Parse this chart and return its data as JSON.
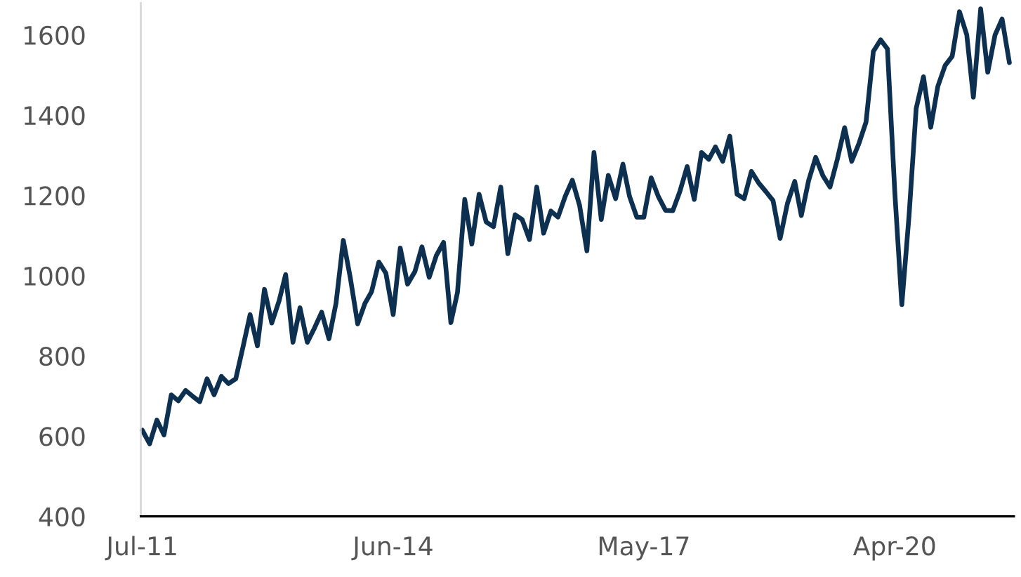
{
  "chart_data": {
    "type": "line",
    "x": [
      "2011-07",
      "2011-08",
      "2011-09",
      "2011-10",
      "2011-11",
      "2011-12",
      "2012-01",
      "2012-02",
      "2012-03",
      "2012-04",
      "2012-05",
      "2012-06",
      "2012-07",
      "2012-08",
      "2012-09",
      "2012-10",
      "2012-11",
      "2012-12",
      "2013-01",
      "2013-02",
      "2013-03",
      "2013-04",
      "2013-05",
      "2013-06",
      "2013-07",
      "2013-08",
      "2013-09",
      "2013-10",
      "2013-11",
      "2013-12",
      "2014-01",
      "2014-02",
      "2014-03",
      "2014-04",
      "2014-05",
      "2014-06",
      "2014-07",
      "2014-08",
      "2014-09",
      "2014-10",
      "2014-11",
      "2014-12",
      "2015-01",
      "2015-02",
      "2015-03",
      "2015-04",
      "2015-05",
      "2015-06",
      "2015-07",
      "2015-08",
      "2015-09",
      "2015-10",
      "2015-11",
      "2015-12",
      "2016-01",
      "2016-02",
      "2016-03",
      "2016-04",
      "2016-05",
      "2016-06",
      "2016-07",
      "2016-08",
      "2016-09",
      "2016-10",
      "2016-11",
      "2016-12",
      "2017-01",
      "2017-02",
      "2017-03",
      "2017-04",
      "2017-05",
      "2017-06",
      "2017-07",
      "2017-08",
      "2017-09",
      "2017-10",
      "2017-11",
      "2017-12",
      "2018-01",
      "2018-02",
      "2018-03",
      "2018-04",
      "2018-05",
      "2018-06",
      "2018-07",
      "2018-08",
      "2018-09",
      "2018-10",
      "2018-11",
      "2018-12",
      "2019-01",
      "2019-02",
      "2019-03",
      "2019-04",
      "2019-05",
      "2019-06",
      "2019-07",
      "2019-08",
      "2019-09",
      "2019-10",
      "2019-11",
      "2019-12",
      "2020-01",
      "2020-02",
      "2020-03",
      "2020-04",
      "2020-05",
      "2020-06",
      "2020-07",
      "2020-08",
      "2020-09",
      "2020-10",
      "2020-11",
      "2020-12",
      "2021-01",
      "2021-02",
      "2021-03",
      "2021-04",
      "2021-05",
      "2021-06",
      "2021-07",
      "2021-08"
    ],
    "series": [
      {
        "color": "#0d3050",
        "values": [
          615,
          581,
          640,
          603,
          703,
          688,
          714,
          699,
          686,
          743,
          703,
          749,
          731,
          743,
          823,
          903,
          825,
          966,
          882,
          937,
          1003,
          834,
          920,
          834,
          869,
          909,
          843,
          931,
          1088,
          994,
          880,
          931,
          960,
          1034,
          1006,
          903,
          1069,
          979,
          1010,
          1072,
          996,
          1050,
          1083,
          883,
          958,
          1190,
          1079,
          1203,
          1134,
          1122,
          1221,
          1055,
          1152,
          1140,
          1090,
          1221,
          1106,
          1161,
          1146,
          1198,
          1238,
          1175,
          1062,
          1307,
          1140,
          1250,
          1192,
          1278,
          1198,
          1146,
          1146,
          1244,
          1198,
          1163,
          1162,
          1210,
          1272,
          1190,
          1307,
          1290,
          1321,
          1285,
          1348,
          1203,
          1192,
          1260,
          1231,
          1210,
          1187,
          1093,
          1180,
          1235,
          1150,
          1237,
          1295,
          1249,
          1221,
          1290,
          1369,
          1285,
          1330,
          1383,
          1559,
          1588,
          1565,
          1210,
          928,
          1152,
          1417,
          1496,
          1370,
          1472,
          1524,
          1547,
          1658,
          1600,
          1445,
          1665,
          1507,
          1600,
          1640,
          1531
        ]
      }
    ],
    "xlim": [
      "2011-06-25",
      "2021-08-20"
    ],
    "ylim": [
      400,
      1680
    ],
    "xticks": [
      {
        "value": "2011-07",
        "label": "Jul-11"
      },
      {
        "value": "2014-06",
        "label": "Jun-14"
      },
      {
        "value": "2017-05",
        "label": "May-17"
      },
      {
        "value": "2020-04",
        "label": "Apr-20"
      }
    ],
    "yticks": [
      400,
      600,
      800,
      1000,
      1200,
      1400,
      1600
    ],
    "grid": false
  }
}
